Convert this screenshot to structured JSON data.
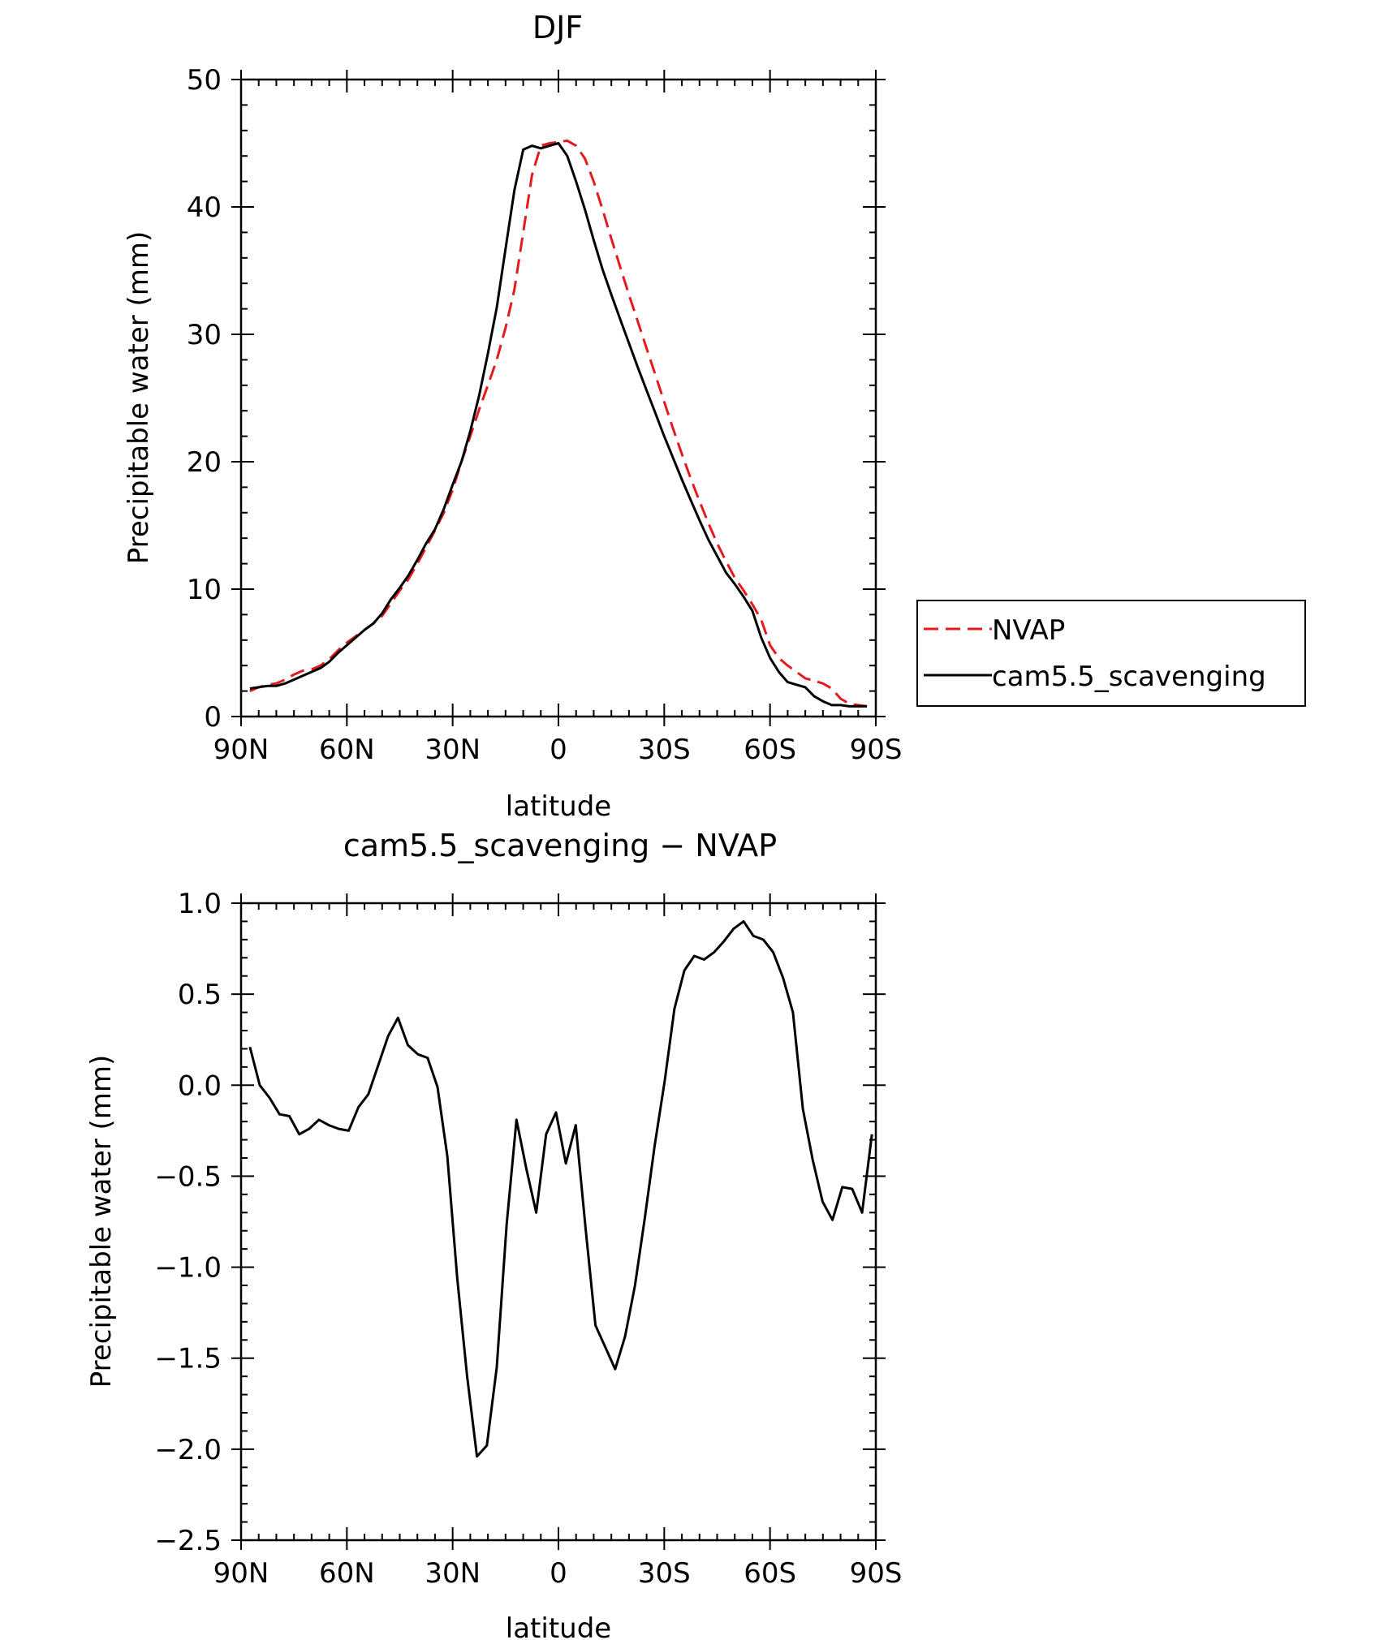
{
  "chart_data": [
    {
      "type": "line",
      "title": "DJF",
      "xlabel": "latitude",
      "ylabel": "Precipitable water (mm)",
      "xlim": [
        90,
        -90
      ],
      "ylim": [
        0,
        50
      ],
      "xticks": [
        90,
        60,
        30,
        0,
        -30,
        -60,
        -90
      ],
      "xtick_labels": [
        "90N",
        "60N",
        "30N",
        "0",
        "30S",
        "60S",
        "90S"
      ],
      "yticks": [
        0,
        10,
        20,
        30,
        40,
        50
      ],
      "ytick_labels": [
        "0",
        "10",
        "20",
        "30",
        "40",
        "50"
      ],
      "legend": {
        "position": "right",
        "entries": [
          "NVAP",
          "cam5.5_scavenging"
        ]
      },
      "x": [
        87.5,
        85,
        82.5,
        80,
        77.5,
        75,
        72.5,
        70,
        67.5,
        65,
        62.5,
        60,
        57.5,
        55,
        52.5,
        50,
        47.5,
        45,
        42.5,
        40,
        37.5,
        35,
        32.5,
        30,
        27.5,
        25,
        22.5,
        20,
        17.5,
        15,
        12.5,
        10,
        7.5,
        5,
        2.5,
        0,
        -2.5,
        -5,
        -7.5,
        -10,
        -12.5,
        -15,
        -17.5,
        -20,
        -22.5,
        -25,
        -27.5,
        -30,
        -32.5,
        -35,
        -37.5,
        -40,
        -42.5,
        -45,
        -47.5,
        -50,
        -52.5,
        -55,
        -57.5,
        -60,
        -62.5,
        -65,
        -67.5,
        -70,
        -72.5,
        -75,
        -77.5,
        -80,
        -82.5,
        -85,
        -87.5
      ],
      "series": [
        {
          "name": "NVAP",
          "color": "#e41a1c",
          "dash": "dashed",
          "values": [
            2.0,
            2.3,
            2.5,
            2.6,
            2.9,
            3.3,
            3.6,
            3.7,
            4.0,
            4.5,
            5.2,
            5.8,
            6.3,
            6.8,
            7.3,
            7.9,
            8.9,
            9.9,
            10.8,
            12.0,
            13.3,
            14.6,
            16.0,
            17.8,
            20.0,
            22.0,
            24.1,
            26.0,
            28.0,
            30.5,
            33.5,
            38.0,
            42.5,
            44.8,
            45.0,
            45.1,
            45.2,
            44.8,
            43.8,
            42.0,
            39.8,
            37.5,
            35.3,
            33.1,
            31.0,
            28.9,
            26.8,
            24.7,
            22.6,
            20.6,
            18.7,
            16.9,
            15.2,
            13.6,
            12.2,
            10.9,
            9.9,
            8.8,
            7.6,
            5.6,
            4.6,
            4.0,
            3.5,
            3.0,
            2.8,
            2.6,
            2.2,
            1.4,
            1.0,
            0.9,
            0.8
          ]
        },
        {
          "name": "cam5.5_scavenging",
          "color": "#000000",
          "dash": "solid",
          "values": [
            2.2,
            2.3,
            2.4,
            2.4,
            2.6,
            2.9,
            3.2,
            3.5,
            3.8,
            4.3,
            5.0,
            5.6,
            6.2,
            6.8,
            7.3,
            8.1,
            9.2,
            10.1,
            11.1,
            12.3,
            13.6,
            14.7,
            16.3,
            18.2,
            20.0,
            22.4,
            25.2,
            28.5,
            32.1,
            36.7,
            41.3,
            44.5,
            44.8,
            44.6,
            44.8,
            45.0,
            44.0,
            42.0,
            39.8,
            37.4,
            35.1,
            33.1,
            31.2,
            29.3,
            27.4,
            25.6,
            23.8,
            22.0,
            20.3,
            18.6,
            17.0,
            15.4,
            13.9,
            12.6,
            11.3,
            10.4,
            9.4,
            8.3,
            6.2,
            4.6,
            3.5,
            2.7,
            2.5,
            2.3,
            1.6,
            1.2,
            0.9,
            0.9,
            0.8,
            0.8,
            0.8
          ]
        }
      ]
    },
    {
      "type": "line",
      "title": "cam5.5_scavenging − NVAP",
      "xlabel": "latitude",
      "ylabel": "Precipitable water (mm)",
      "xlim": [
        90,
        -90
      ],
      "ylim": [
        -2.5,
        1.0
      ],
      "xticks": [
        90,
        60,
        30,
        0,
        -30,
        -60,
        -90
      ],
      "xtick_labels": [
        "90N",
        "60N",
        "30N",
        "0",
        "30S",
        "60S",
        "90S"
      ],
      "yticks": [
        1.0,
        0.5,
        0.0,
        -0.5,
        -1.0,
        -1.5,
        -2.0,
        -2.5
      ],
      "ytick_labels": [
        "1.0",
        "0.5",
        "0.0",
        "−0.5",
        "−1.0",
        "−1.5",
        "−2.0",
        "−2.5"
      ],
      "x": [
        87.5,
        84.7,
        81.9,
        79.1,
        76.3,
        73.5,
        70.7,
        67.9,
        65.1,
        62.3,
        59.5,
        56.7,
        53.9,
        51.1,
        48.3,
        45.5,
        42.7,
        39.9,
        37.1,
        34.3,
        31.5,
        28.7,
        25.9,
        23.1,
        20.3,
        17.5,
        14.7,
        11.9,
        9.1,
        6.3,
        3.5,
        0.7,
        -2.1,
        -4.9,
        -7.7,
        -10.5,
        -13.3,
        -16.1,
        -18.9,
        -21.7,
        -24.5,
        -27.3,
        -30.1,
        -32.9,
        -35.7,
        -38.5,
        -41.3,
        -44.1,
        -46.9,
        -49.7,
        -52.5,
        -55.3,
        -58.1,
        -60.9,
        -63.7,
        -66.5,
        -69.3,
        -72.1,
        -74.9,
        -77.7,
        -80.5,
        -83.3,
        -86.1,
        -88.9
      ],
      "series": [
        {
          "name": "cam5.5_scavenging",
          "color": "#000000",
          "dash": "solid",
          "values": [
            0.21,
            0.0,
            -0.07,
            -0.16,
            -0.17,
            -0.27,
            -0.24,
            -0.19,
            -0.22,
            -0.24,
            -0.25,
            -0.12,
            -0.05,
            0.11,
            0.27,
            0.37,
            0.22,
            0.17,
            0.15,
            -0.01,
            -0.39,
            -1.06,
            -1.6,
            -2.04,
            -1.98,
            -1.55,
            -0.77,
            -0.19,
            -0.46,
            -0.7,
            -0.27,
            -0.15,
            -0.43,
            -0.22,
            -0.79,
            -1.32,
            -1.44,
            -1.56,
            -1.38,
            -1.1,
            -0.73,
            -0.33,
            0.02,
            0.42,
            0.63,
            0.71,
            0.69,
            0.73,
            0.79,
            0.86,
            0.9,
            0.82,
            0.8,
            0.73,
            0.59,
            0.4,
            -0.13,
            -0.41,
            -0.64,
            -0.74,
            -0.56,
            -0.57,
            -0.7,
            -0.27
          ]
        }
      ]
    }
  ]
}
